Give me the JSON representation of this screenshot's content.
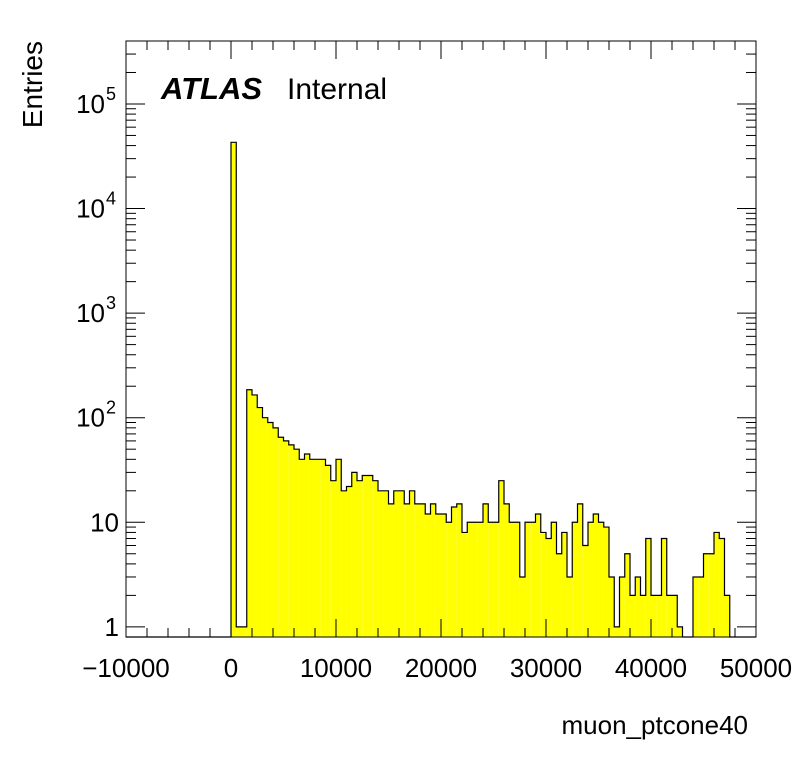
{
  "label": {
    "atlas": "ATLAS",
    "status": "Internal"
  },
  "chart_data": {
    "type": "bar",
    "style": "histogram",
    "xlabel": "muon_ptcone40",
    "ylabel": "Entries",
    "xlim": [
      -10000,
      50000
    ],
    "ylim": [
      0.8,
      400000
    ],
    "y_scale": "log",
    "x_ticks": [
      "−10000",
      "0",
      "10000",
      "20000",
      "30000",
      "40000",
      "50000"
    ],
    "y_ticks": [
      {
        "value": 1,
        "base": "1",
        "exp": ""
      },
      {
        "value": 10,
        "base": "10",
        "exp": ""
      },
      {
        "value": 100,
        "base": "10",
        "exp": "2"
      },
      {
        "value": 1000,
        "base": "10",
        "exp": "3"
      },
      {
        "value": 10000,
        "base": "10",
        "exp": "4"
      },
      {
        "value": 100000,
        "base": "10",
        "exp": "5"
      }
    ],
    "fill_color": "#ffff00",
    "line_color": "#000000",
    "bin_width": 500,
    "x_first_bin_low": -10000,
    "values": [
      0,
      0,
      0,
      0,
      0,
      0,
      0,
      0,
      0,
      0,
      0,
      0,
      0,
      0,
      0,
      0,
      0,
      0,
      0,
      0,
      43000,
      1,
      1,
      185,
      165,
      125,
      100,
      90,
      80,
      65,
      60,
      55,
      50,
      40,
      45,
      40,
      40,
      40,
      35,
      25,
      40,
      20,
      22,
      30,
      25,
      28,
      28,
      25,
      20,
      20,
      15,
      20,
      20,
      15,
      20,
      15,
      15,
      12,
      15,
      12,
      12,
      10,
      14,
      15,
      8,
      10,
      10,
      10,
      15,
      10,
      10,
      25,
      15,
      10,
      10,
      3,
      10,
      10,
      12,
      8,
      7,
      10,
      5,
      8,
      3,
      10,
      15,
      6,
      10,
      12,
      10,
      9,
      3,
      1,
      3,
      5,
      2,
      3,
      2,
      7,
      2,
      2,
      7,
      2,
      2,
      1,
      0,
      0,
      3,
      3,
      5,
      5,
      8,
      7,
      2,
      0,
      0,
      0,
      0,
      0
    ]
  }
}
